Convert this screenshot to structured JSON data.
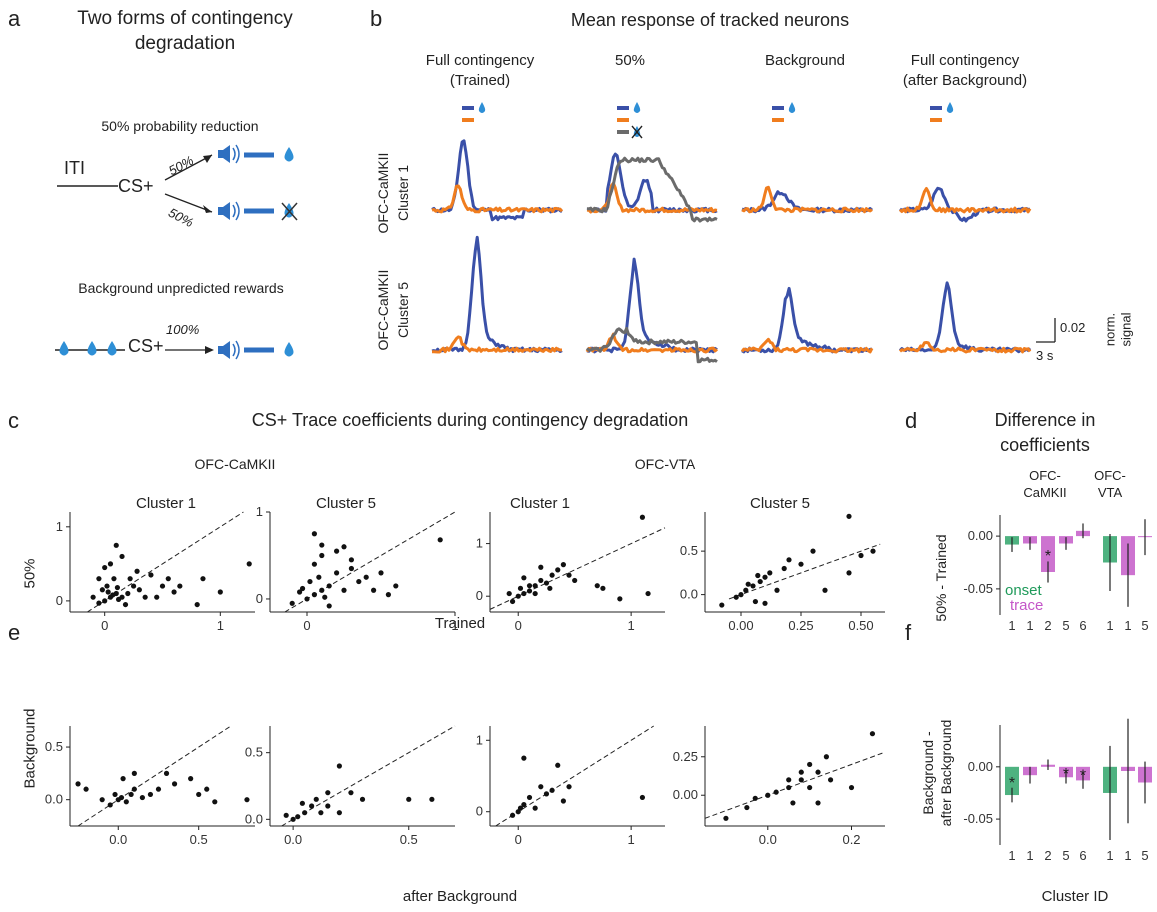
{
  "panel_labels": {
    "a": "a",
    "b": "b",
    "c": "c",
    "d": "d",
    "e": "e",
    "f": "f"
  },
  "a": {
    "title_line1": "Two forms of contingency",
    "title_line2": "degradation",
    "sub1": "50% probability reduction",
    "iti": "ITI",
    "cs": "CS+",
    "p_upper": "50%",
    "p_lower": "50%",
    "sub2": "Background unpredicted rewards",
    "cs2": "CS+",
    "p_full": "100%"
  },
  "b": {
    "title": "Mean response of tracked neurons",
    "conditions": [
      {
        "line1": "Full contingency",
        "line2": "(Trained)"
      },
      {
        "line1": "50%",
        "line2": ""
      },
      {
        "line1": "Background",
        "line2": ""
      },
      {
        "line1": "Full contingency",
        "line2": "(after Background)"
      }
    ],
    "rows": [
      {
        "line1": "OFC-CaMKII",
        "line2": "Cluster 1"
      },
      {
        "line1": "OFC-CaMKII",
        "line2": "Cluster 5"
      }
    ],
    "scale_y": "0.02",
    "scale_x": "3 s",
    "scale_label_line1": "norm.",
    "scale_label_line2": "signal",
    "colors": {
      "blue": "#3a50a8",
      "orange": "#f07d1e",
      "gray": "#6b6b6b",
      "drop": "#2e8fd6"
    }
  },
  "c": {
    "title": "CS+ Trace coefficients during contingency degradation",
    "group1": "OFC-CaMKII",
    "group2": "OFC-VTA",
    "panels": [
      "Cluster 1",
      "Cluster 5",
      "Cluster 1",
      "Cluster 5"
    ],
    "ylabel": "50%",
    "xlabel": "Trained"
  },
  "e": {
    "ylabel": "Background",
    "xlabel": "after Background"
  },
  "d": {
    "title_line1": "Difference in",
    "title_line2": "coefficients",
    "group1_line1": "OFC-",
    "group1_line2": "CaMKII",
    "group2_line1": "OFC-",
    "group2_line2": "VTA",
    "ylabel": "50% - Trained",
    "legend_onset": "onset",
    "legend_trace": "trace"
  },
  "f": {
    "ylabel_line1": "Background -",
    "ylabel_line2": "after Background",
    "xlabel": "Cluster ID"
  },
  "chart_data": [
    {
      "type": "scatter",
      "title": "Cluster 1",
      "group": "OFC-CaMKII",
      "xlabel": "Trained",
      "ylabel": "50%",
      "xlim": [
        -0.3,
        1.3
      ],
      "ylim": [
        -0.15,
        1.2
      ],
      "xticks": [
        0,
        1
      ],
      "yticks": [
        0,
        1
      ],
      "points": [
        [
          0,
          0
        ],
        [
          0.05,
          0.05
        ],
        [
          0.1,
          0.1
        ],
        [
          0.02,
          0.2
        ],
        [
          -0.05,
          -0.03
        ],
        [
          0.15,
          0.05
        ],
        [
          0.2,
          0.1
        ],
        [
          0.08,
          0.3
        ],
        [
          0.12,
          0.02
        ],
        [
          -0.1,
          0.05
        ],
        [
          0.25,
          0.2
        ],
        [
          0.3,
          0.15
        ],
        [
          0.4,
          0.35
        ],
        [
          0.5,
          0.2
        ],
        [
          0.45,
          0.05
        ],
        [
          0.05,
          0.5
        ],
        [
          0.1,
          0.75
        ],
        [
          -0.05,
          0.3
        ],
        [
          0,
          0.45
        ],
        [
          0.15,
          0.6
        ],
        [
          0.6,
          0.12
        ],
        [
          0.8,
          -0.05
        ],
        [
          0.85,
          0.3
        ],
        [
          1.0,
          0.12
        ],
        [
          1.25,
          0.5
        ],
        [
          0.35,
          0.05
        ],
        [
          0.18,
          -0.05
        ],
        [
          0.22,
          0.3
        ],
        [
          0.03,
          0.12
        ],
        [
          -0.02,
          0.15
        ],
        [
          0.07,
          0.08
        ],
        [
          0.11,
          0.18
        ],
        [
          0.28,
          0.4
        ],
        [
          0.55,
          0.3
        ],
        [
          0.65,
          0.2
        ]
      ]
    },
    {
      "type": "scatter",
      "title": "Cluster 5",
      "group": "OFC-CaMKII",
      "xlabel": "Trained",
      "ylabel": "50%",
      "xlim": [
        -0.25,
        1.0
      ],
      "ylim": [
        -0.15,
        1.0
      ],
      "xticks": [
        0,
        1
      ],
      "yticks": [
        0,
        1
      ],
      "points": [
        [
          0,
          0
        ],
        [
          0.05,
          0.05
        ],
        [
          0.1,
          0.1
        ],
        [
          -0.05,
          0.08
        ],
        [
          0.02,
          0.2
        ],
        [
          0.15,
          0.15
        ],
        [
          0.2,
          0.3
        ],
        [
          0.25,
          0.1
        ],
        [
          0.05,
          0.4
        ],
        [
          0.1,
          0.5
        ],
        [
          0.3,
          0.35
        ],
        [
          0.35,
          0.2
        ],
        [
          0.4,
          0.25
        ],
        [
          0.5,
          0.3
        ],
        [
          0.6,
          0.15
        ],
        [
          0.05,
          0.75
        ],
        [
          0.1,
          0.62
        ],
        [
          -0.1,
          -0.05
        ],
        [
          0.15,
          -0.08
        ],
        [
          0.45,
          0.1
        ],
        [
          0.55,
          0.05
        ],
        [
          0.9,
          0.68
        ],
        [
          0.2,
          0.55
        ],
        [
          0.08,
          0.25
        ],
        [
          -0.03,
          0.12
        ],
        [
          0.12,
          0.02
        ],
        [
          0.3,
          0.45
        ],
        [
          0.25,
          0.6
        ]
      ]
    },
    {
      "type": "scatter",
      "title": "Cluster 1",
      "group": "OFC-VTA",
      "xlabel": "Trained",
      "ylabel": "50%",
      "xlim": [
        -0.25,
        1.3
      ],
      "ylim": [
        -0.3,
        1.6
      ],
      "xticks": [
        0,
        1
      ],
      "yticks": [
        0,
        1
      ],
      "points": [
        [
          0,
          0
        ],
        [
          0.05,
          0.05
        ],
        [
          0.1,
          0.1
        ],
        [
          -0.05,
          -0.1
        ],
        [
          0.15,
          0.2
        ],
        [
          0.2,
          0.3
        ],
        [
          0.25,
          0.25
        ],
        [
          0.3,
          0.4
        ],
        [
          0.35,
          0.5
        ],
        [
          0.4,
          0.6
        ],
        [
          0.1,
          0.2
        ],
        [
          0.05,
          0.35
        ],
        [
          0.2,
          0.55
        ],
        [
          0.45,
          0.4
        ],
        [
          0.5,
          0.3
        ],
        [
          0.7,
          0.2
        ],
        [
          0.75,
          0.15
        ],
        [
          0.9,
          -0.05
        ],
        [
          1.1,
          1.5
        ],
        [
          1.15,
          0.05
        ],
        [
          0.15,
          0.05
        ],
        [
          0.02,
          0.15
        ],
        [
          -0.08,
          0.05
        ],
        [
          0.28,
          0.15
        ]
      ]
    },
    {
      "type": "scatter",
      "title": "Cluster 5",
      "group": "OFC-VTA",
      "xlabel": "Trained",
      "ylabel": "50%",
      "xlim": [
        -0.15,
        0.6
      ],
      "ylim": [
        -0.2,
        0.95
      ],
      "xticks": [
        0,
        0.25,
        0.5
      ],
      "xticklabels": [
        "0.00",
        "0.25",
        "0.50"
      ],
      "yticks": [
        0,
        0.5
      ],
      "yticklabels": [
        "0.0",
        "0.5"
      ],
      "points": [
        [
          0,
          0
        ],
        [
          0.02,
          0.05
        ],
        [
          0.05,
          0.1
        ],
        [
          -0.02,
          -0.03
        ],
        [
          0.08,
          0.15
        ],
        [
          0.1,
          0.2
        ],
        [
          0.12,
          0.25
        ],
        [
          0.15,
          0.05
        ],
        [
          0.18,
          0.3
        ],
        [
          0.06,
          -0.08
        ],
        [
          0.03,
          0.12
        ],
        [
          0.1,
          -0.1
        ],
        [
          0.2,
          0.4
        ],
        [
          0.25,
          0.35
        ],
        [
          0.3,
          0.5
        ],
        [
          0.35,
          0.05
        ],
        [
          0.45,
          0.9
        ],
        [
          0.5,
          0.45
        ],
        [
          0.55,
          0.5
        ],
        [
          0.45,
          0.25
        ],
        [
          -0.08,
          -0.12
        ],
        [
          0.07,
          0.22
        ]
      ]
    },
    {
      "type": "scatter",
      "title": "",
      "group": "OFC-CaMKII",
      "xlabel": "after Background",
      "ylabel": "Background",
      "xlim": [
        -0.3,
        0.85
      ],
      "ylim": [
        -0.25,
        0.7
      ],
      "xticks": [
        0,
        0.5
      ],
      "xticklabels": [
        "0.0",
        "0.5"
      ],
      "yticks": [
        0,
        0.5
      ],
      "yticklabels": [
        "0.0",
        "0.5"
      ],
      "points": [
        [
          0,
          0
        ],
        [
          0.02,
          0.02
        ],
        [
          -0.02,
          0.05
        ],
        [
          0.05,
          -0.02
        ],
        [
          0.08,
          0.05
        ],
        [
          0.1,
          0.1
        ],
        [
          -0.05,
          -0.05
        ],
        [
          0.15,
          0.02
        ],
        [
          0.2,
          0.05
        ],
        [
          0.25,
          0.1
        ],
        [
          -0.25,
          0.15
        ],
        [
          -0.2,
          0.1
        ],
        [
          0.3,
          0.25
        ],
        [
          0.35,
          0.15
        ],
        [
          0.45,
          0.2
        ],
        [
          0.5,
          0.05
        ],
        [
          0.55,
          0.1
        ],
        [
          0.6,
          -0.02
        ],
        [
          0.8,
          0
        ],
        [
          0.03,
          0.2
        ],
        [
          0.1,
          0.25
        ],
        [
          -0.1,
          0
        ]
      ]
    },
    {
      "type": "scatter",
      "title": "",
      "group": "OFC-CaMKII",
      "xlabel": "after Background",
      "ylabel": "Background",
      "xlim": [
        -0.1,
        0.7
      ],
      "ylim": [
        -0.05,
        0.7
      ],
      "xticks": [
        0,
        0.5
      ],
      "xticklabels": [
        "0.0",
        "0.5"
      ],
      "yticks": [
        0,
        0.5
      ],
      "yticklabels": [
        "0.0",
        "0.5"
      ],
      "points": [
        [
          0,
          0
        ],
        [
          0.02,
          0.02
        ],
        [
          0.05,
          0.05
        ],
        [
          0.08,
          0.1
        ],
        [
          0.1,
          0.15
        ],
        [
          -0.03,
          0.03
        ],
        [
          0.12,
          0.05
        ],
        [
          0.15,
          0.2
        ],
        [
          0.2,
          0.4
        ],
        [
          0.25,
          0.2
        ],
        [
          0.3,
          0.15
        ],
        [
          0.2,
          0.05
        ],
        [
          0.5,
          0.15
        ],
        [
          0.6,
          0.15
        ],
        [
          0.15,
          0.1
        ],
        [
          0.04,
          0.12
        ]
      ]
    },
    {
      "type": "scatter",
      "title": "",
      "group": "OFC-VTA",
      "xlabel": "after Background",
      "ylabel": "Background",
      "xlim": [
        -0.25,
        1.3
      ],
      "ylim": [
        -0.2,
        1.2
      ],
      "xticks": [
        0,
        1
      ],
      "yticks": [
        0,
        1
      ],
      "points": [
        [
          0,
          0
        ],
        [
          0.02,
          0.05
        ],
        [
          0.05,
          0.1
        ],
        [
          -0.05,
          -0.05
        ],
        [
          0.1,
          0.2
        ],
        [
          0.2,
          0.35
        ],
        [
          0.25,
          0.25
        ],
        [
          0.3,
          0.3
        ],
        [
          0.05,
          0.75
        ],
        [
          0.35,
          0.65
        ],
        [
          0.4,
          0.15
        ],
        [
          0.45,
          0.35
        ],
        [
          1.1,
          0.2
        ],
        [
          0.15,
          0.05
        ]
      ]
    },
    {
      "type": "scatter",
      "title": "",
      "group": "OFC-VTA",
      "xlabel": "after Background",
      "ylabel": "Background",
      "xlim": [
        -0.15,
        0.28
      ],
      "ylim": [
        -0.2,
        0.45
      ],
      "xticks": [
        0,
        0.2
      ],
      "xticklabels": [
        "0.0",
        "0.2"
      ],
      "yticks": [
        0,
        0.25
      ],
      "yticklabels": [
        "0.00",
        "0.25"
      ],
      "points": [
        [
          0,
          0
        ],
        [
          0.02,
          0.02
        ],
        [
          -0.03,
          -0.02
        ],
        [
          0.05,
          0.05
        ],
        [
          0.08,
          0.1
        ],
        [
          0.1,
          0.2
        ],
        [
          0.12,
          0.15
        ],
        [
          0.15,
          0.1
        ],
        [
          0.1,
          0.05
        ],
        [
          0.06,
          -0.05
        ],
        [
          0.12,
          -0.05
        ],
        [
          0.2,
          0.05
        ],
        [
          0.25,
          0.4
        ],
        [
          -0.1,
          -0.15
        ],
        [
          0.08,
          0.15
        ],
        [
          0.05,
          0.1
        ],
        [
          0.14,
          0.25
        ],
        [
          -0.05,
          -0.08
        ]
      ]
    },
    {
      "type": "bar",
      "title": "Difference in coefficients",
      "ylabel": "50% - Trained",
      "categories": [
        "1",
        "1",
        "2",
        "5",
        "6",
        "1",
        "1",
        "5"
      ],
      "kind": [
        "onset",
        "trace",
        "trace",
        "trace",
        "trace",
        "onset",
        "trace",
        "trace"
      ],
      "values": [
        -0.008,
        -0.007,
        -0.034,
        -0.007,
        0.005,
        -0.025,
        -0.037,
        -0.001
      ],
      "err": [
        0.007,
        0.006,
        0.01,
        0.006,
        0.007,
        0.027,
        0.03,
        0.017
      ],
      "sig": [
        false,
        false,
        true,
        false,
        false,
        false,
        false,
        false
      ],
      "ylim": [
        -0.07,
        0.02
      ],
      "yticks": [
        0,
        -0.05
      ],
      "yticklabels": [
        "0.00",
        "-0.05"
      ]
    },
    {
      "type": "bar",
      "title": "",
      "ylabel": "Background - after Background",
      "xlabel": "Cluster ID",
      "categories": [
        "1",
        "1",
        "2",
        "5",
        "6",
        "1",
        "1",
        "5"
      ],
      "kind": [
        "onset",
        "trace",
        "trace",
        "trace",
        "trace",
        "onset",
        "trace",
        "trace"
      ],
      "values": [
        -0.027,
        -0.008,
        0.002,
        -0.01,
        -0.013,
        -0.025,
        -0.004,
        -0.015
      ],
      "err": [
        0.007,
        0.008,
        0.005,
        0.006,
        0.008,
        0.045,
        0.05,
        0.02
      ],
      "sig": [
        true,
        false,
        false,
        true,
        true,
        false,
        false,
        false
      ],
      "ylim": [
        -0.07,
        0.04
      ],
      "yticks": [
        0,
        -0.05
      ],
      "yticklabels": [
        "0.00",
        "-0.05"
      ]
    }
  ]
}
